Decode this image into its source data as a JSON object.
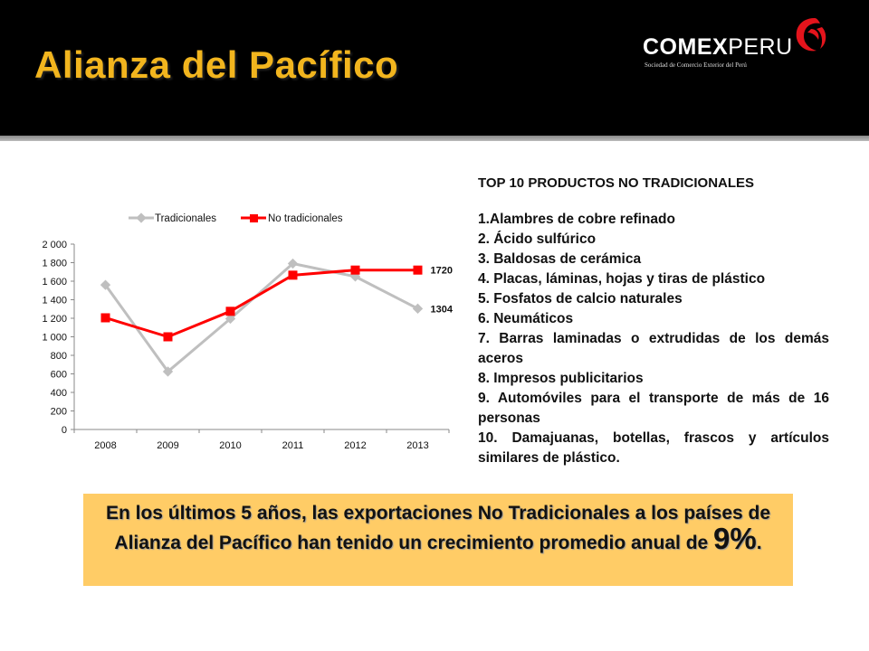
{
  "header": {
    "title": "Alianza del Pacífico",
    "logo_name_bold": "COMEX",
    "logo_name_light": "PERU",
    "logo_subtitle": "Sociedad de Comercio Exterior del Perú",
    "title_color": "#F2B51E"
  },
  "chart_data": {
    "type": "line",
    "x": [
      "2008",
      "2009",
      "2010",
      "2011",
      "2012",
      "2013"
    ],
    "series": [
      {
        "name": "Tradicionales",
        "values": [
          1560,
          625,
          1195,
          1790,
          1650,
          1304
        ],
        "color": "#BFBFBF",
        "marker": "diamond"
      },
      {
        "name": "No tradicionales",
        "values": [
          1205,
          1000,
          1275,
          1665,
          1720,
          1720
        ],
        "color": "#FF0000",
        "marker": "square"
      }
    ],
    "data_labels": [
      {
        "series": "No tradicionales",
        "x": "2013",
        "text": "1720"
      },
      {
        "series": "Tradicionales",
        "x": "2013",
        "text": "1304"
      }
    ],
    "yticks": [
      "0",
      "200",
      "400",
      "600",
      "800",
      "1 000",
      "1 200",
      "1 400",
      "1 600",
      "1 800",
      "2 000"
    ],
    "ylim": [
      0,
      2000
    ],
    "legend_position": "top",
    "grid": false
  },
  "top10": {
    "heading": "TOP 10 PRODUCTOS NO TRADICIONALES",
    "items": [
      "1.Alambres de cobre refinado",
      "2. Ácido sulfúrico",
      "3. Baldosas de cerámica",
      "4. Placas, láminas, hojas y tiras de plástico",
      "5. Fosfatos de calcio naturales",
      "6. Neumáticos",
      "7. Barras laminadas o extrudidas de los demás aceros",
      "8. Impresos publicitarios",
      "9. Automóviles para el transporte de más de 16 personas",
      "10. Damajuanas, botellas, frascos y artículos similares de plástico."
    ]
  },
  "banner": {
    "text": "En los últimos 5 años, las exportaciones No Tradicionales a los países de Alianza del Pacífico han tenido un crecimiento promedio anual de",
    "highlight": "9%",
    "end": ".",
    "color": "#FFCC66"
  }
}
